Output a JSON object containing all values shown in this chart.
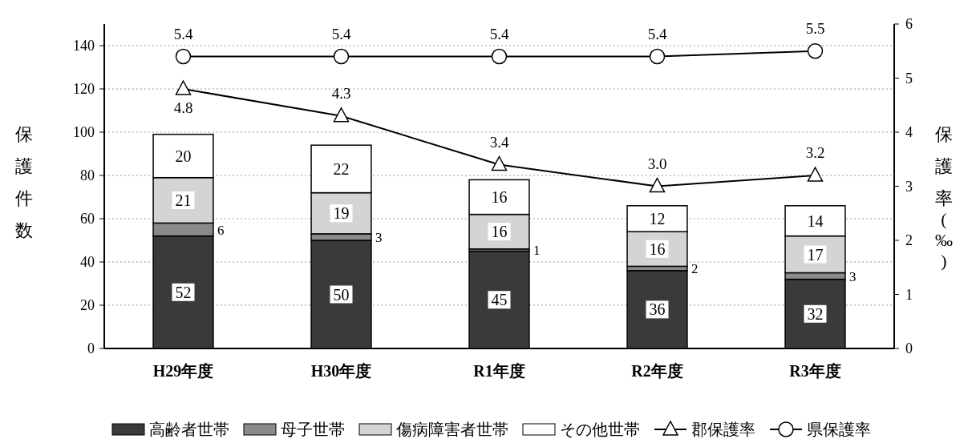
{
  "chart_data": {
    "type": "bar",
    "stacked": true,
    "ylabel": "保護件数",
    "y2label": "保護率(‰)",
    "categories": [
      "H29年度",
      "H30年度",
      "R1年度",
      "R2年度",
      "R3年度"
    ],
    "series": [
      {
        "name": "高齢者世帯",
        "color": "#3a3a3a",
        "values": [
          52,
          50,
          45,
          36,
          32
        ]
      },
      {
        "name": "母子世帯",
        "color": "#8a8a8a",
        "values": [
          6,
          3,
          1,
          2,
          3
        ]
      },
      {
        "name": "傷病障害者世帯",
        "color": "#d4d4d4",
        "values": [
          21,
          19,
          16,
          16,
          17
        ]
      },
      {
        "name": "その他世帯",
        "color": "#ffffff",
        "values": [
          20,
          22,
          16,
          12,
          14
        ]
      },
      {
        "name": "郡保護率",
        "type": "line",
        "axis": "y2",
        "color": "#000000",
        "marker": "triangle",
        "values": [
          4.8,
          4.3,
          3.4,
          3.0,
          3.2
        ],
        "value_labels": [
          "4.8",
          "4.3",
          "3.4",
          "3.0",
          "3.2"
        ]
      },
      {
        "name": "県保護率",
        "type": "line",
        "axis": "y2",
        "color": "#000000",
        "marker": "circle",
        "values": [
          5.4,
          5.4,
          5.4,
          5.4,
          5.5
        ],
        "value_labels": [
          "5.4",
          "5.4",
          "5.4",
          "5.4",
          "5.5"
        ]
      }
    ],
    "ylim": [
      0,
      150
    ],
    "yticks": [
      0,
      20,
      40,
      60,
      80,
      100,
      120,
      140
    ],
    "y2lim": [
      0,
      6
    ],
    "y2ticks": [
      0,
      1,
      2,
      3,
      4,
      5,
      6
    ],
    "grid": "y",
    "legend": "bottom",
    "data_labels": true
  }
}
